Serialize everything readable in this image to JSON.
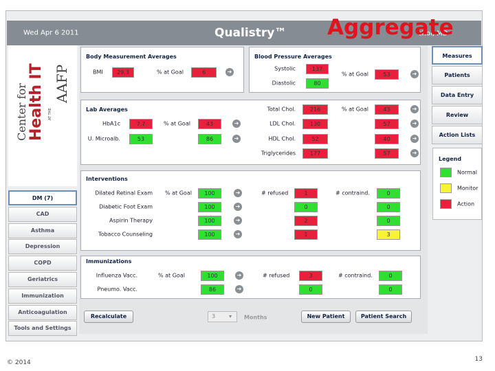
{
  "header": {
    "date": "Wed Apr 6 2011",
    "app": "Qualistry™",
    "overlay": "Aggregate",
    "user": "chol, MD"
  },
  "logo": {
    "line1": "Center for",
    "line2": "Health IT",
    "line3": "AT THE",
    "line4": "AAFP"
  },
  "left_nav": [
    "DM (7)",
    "CAD",
    "Asthma",
    "Depression",
    "COPD",
    "Geriatrics",
    "Immunization",
    "Anticoagulation",
    "Tools and Settings"
  ],
  "right_nav": [
    "Measures",
    "Patients",
    "Data Entry",
    "Review",
    "Action Lists"
  ],
  "legend": {
    "title": "Legend",
    "items": [
      {
        "label": "Normal",
        "color": "#2fe030"
      },
      {
        "label": "Monitor",
        "color": "#f7f532"
      },
      {
        "label": "Action",
        "color": "#e8203c"
      }
    ]
  },
  "panels": [
    {
      "title": "Body Measurement Averages",
      "fields": [
        {
          "label": "BMI",
          "value": "29.3",
          "color": "#e8203c"
        },
        {
          "label": "% at Goal",
          "value": "6",
          "color": "#e8203c"
        }
      ]
    },
    {
      "title": "Blood Pressure Averages",
      "fields": [
        {
          "label": "Systolic",
          "value": "137",
          "color": "#e8203c"
        },
        {
          "label": "Diastolic",
          "value": "80",
          "color": "#2fe030"
        },
        {
          "label": "% at Goal",
          "value": "53",
          "color": "#e8203c"
        }
      ]
    },
    {
      "title": "Lab Averages",
      "fields": [
        {
          "label": "HbA1c",
          "value": "7.7",
          "color": "#e8203c"
        },
        {
          "label": "% at Goal",
          "value": "43",
          "color": "#e8203c"
        },
        {
          "label": "U. Microalb.",
          "value": "53",
          "color": "#2fe030"
        },
        {
          "value": "86",
          "color": "#2fe030"
        },
        {
          "label": "Total Chol.",
          "value": "216",
          "color": "#e8203c"
        },
        {
          "label": "% at Goal",
          "value": "43",
          "color": "#e8203c"
        },
        {
          "label": "LDL Chol.",
          "value": "130",
          "color": "#e8203c"
        },
        {
          "value": "57",
          "color": "#e8203c"
        },
        {
          "label": "HDL Chol.",
          "value": "52",
          "color": "#e8203c"
        },
        {
          "value": "40",
          "color": "#e8203c"
        },
        {
          "label": "Triglycerides",
          "value": "177",
          "color": "#e8203c"
        },
        {
          "value": "57",
          "color": "#e8203c"
        }
      ]
    }
  ],
  "tables": [
    {
      "title": "Interventions",
      "columns": [
        "% at Goal",
        "# refused",
        "# contraind."
      ],
      "rows": [
        {
          "label": "Dilated Retinal Exam",
          "cells": [
            {
              "value": "100",
              "color": "#2fe030"
            },
            {
              "value": "1",
              "color": "#e8203c"
            },
            {
              "value": "0",
              "color": "#2fe030"
            }
          ]
        },
        {
          "label": "Diabetic Foot Exam",
          "cells": [
            {
              "value": "100",
              "color": "#2fe030"
            },
            {
              "value": "0",
              "color": "#2fe030"
            },
            {
              "value": "0",
              "color": "#2fe030"
            }
          ]
        },
        {
          "label": "Aspirin Therapy",
          "cells": [
            {
              "value": "100",
              "color": "#2fe030"
            },
            {
              "value": "2",
              "color": "#e8203c"
            },
            {
              "value": "0",
              "color": "#2fe030"
            }
          ]
        },
        {
          "label": "Tobacco Counseling",
          "cells": [
            {
              "value": "100",
              "color": "#2fe030"
            },
            {
              "value": "1",
              "color": "#e8203c"
            },
            {
              "value": "3",
              "color": "#f7f532"
            }
          ]
        }
      ]
    },
    {
      "title": "Immunizations",
      "columns": [
        "% at Goal",
        "# refused",
        "# contraind."
      ],
      "rows": [
        {
          "label": "Influenza Vacc.",
          "cells": [
            {
              "value": "100",
              "color": "#2fe030"
            },
            {
              "value": "3",
              "color": "#e8203c"
            },
            {
              "value": "0",
              "color": "#2fe030"
            }
          ]
        },
        {
          "label": "Pneumo. Vacc.",
          "cells": [
            {
              "value": "86",
              "color": "#2fe030"
            },
            {
              "value": "0",
              "color": "#2fe030"
            },
            {
              "value": "0",
              "color": "#2fe030"
            }
          ]
        }
      ]
    }
  ],
  "bottom": {
    "recalculate": "Recalculate",
    "months_value": "3",
    "months_label": "Months",
    "new_patient": "New Patient",
    "patient_search": "Patient Search"
  },
  "footer": {
    "copyright": "© 2014",
    "page": "13"
  }
}
